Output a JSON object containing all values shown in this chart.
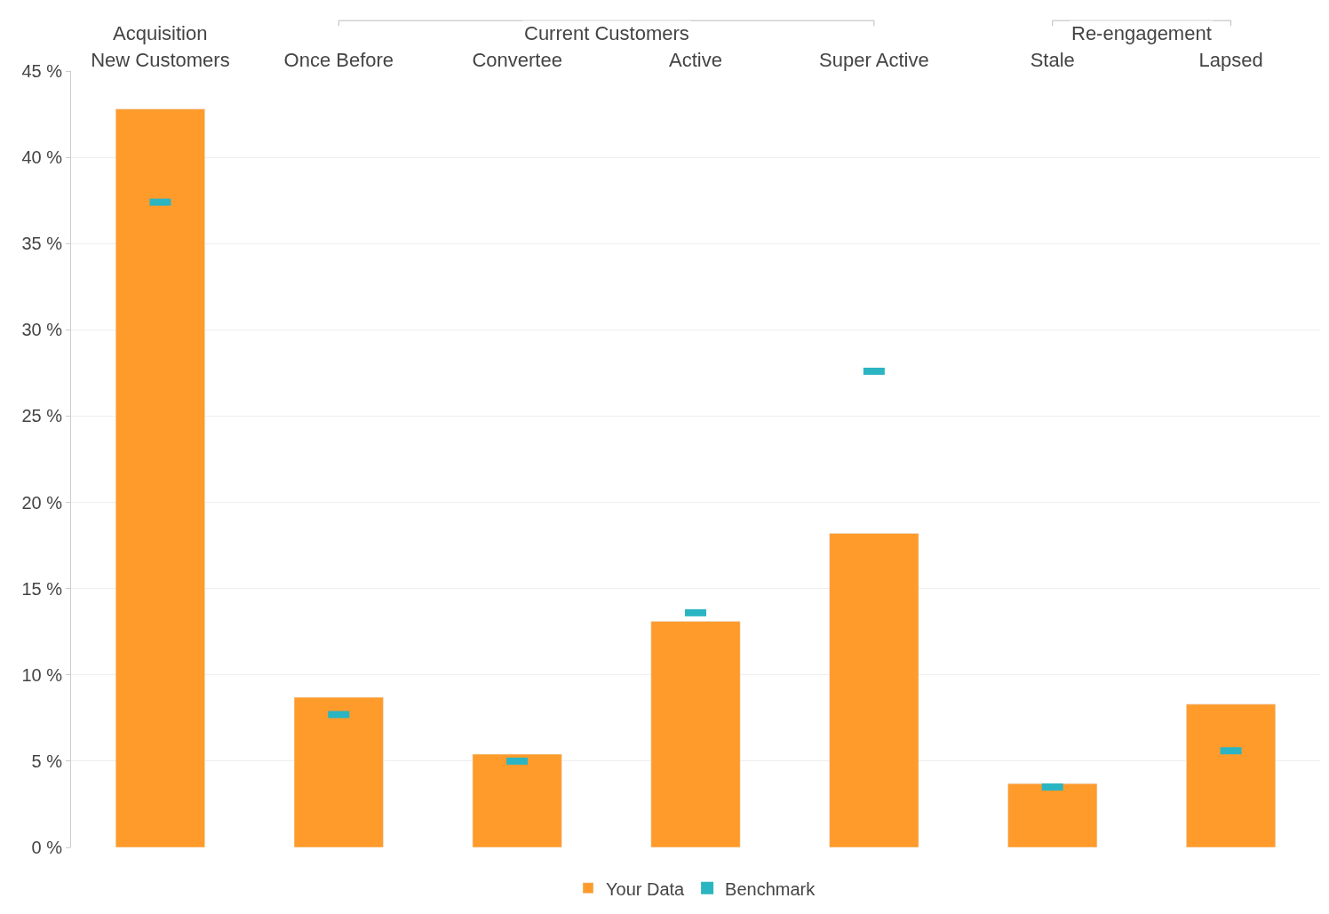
{
  "chart_data": {
    "type": "bar",
    "categories": [
      "New Customers",
      "Once Before",
      "Convertee",
      "Active",
      "Super Active",
      "Stale",
      "Lapsed"
    ],
    "series": [
      {
        "name": "Your Data",
        "color": "#ff9b2b",
        "values": [
          42.8,
          8.7,
          5.4,
          13.1,
          18.2,
          3.7,
          8.3
        ]
      },
      {
        "name": "Benchmark",
        "color": "#2bb5c2",
        "type": "scatter",
        "values": [
          37.4,
          7.7,
          5.0,
          13.6,
          27.6,
          3.5,
          5.6
        ]
      }
    ],
    "annotations": [
      "Acquisition",
      "Current Customers",
      "Re-engagement"
    ],
    "ylim": [
      0,
      45
    ],
    "yticks": [
      {
        "value": 0,
        "label": "0 %"
      },
      {
        "value": 5,
        "label": "5 %"
      },
      {
        "value": 10,
        "label": "10 %"
      },
      {
        "value": 15,
        "label": "15 %"
      },
      {
        "value": 20,
        "label": "20 %"
      },
      {
        "value": 25,
        "label": "25 %"
      },
      {
        "value": 30,
        "label": "30 %"
      },
      {
        "value": 35,
        "label": "35 %"
      },
      {
        "value": 40,
        "label": "40 %"
      },
      {
        "value": 45,
        "label": "45 %"
      }
    ],
    "grid": "y",
    "legend": "bottom"
  }
}
